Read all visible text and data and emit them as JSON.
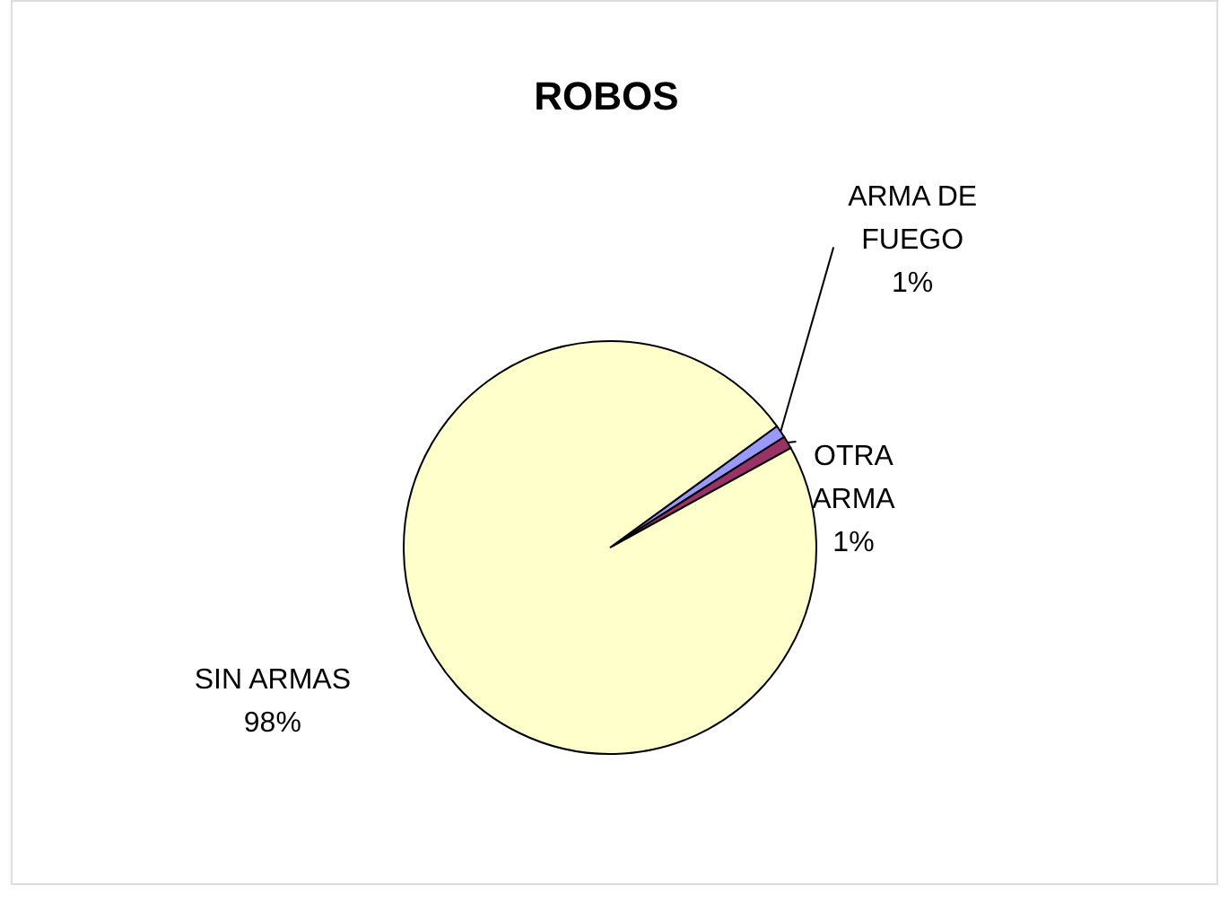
{
  "chart_data": {
    "type": "pie",
    "title": "ROBOS",
    "categories": [
      "ARMA DE FUEGO",
      "OTRA ARMA",
      "SIN ARMAS"
    ],
    "values": [
      1,
      1,
      98
    ],
    "value_labels": [
      "1%",
      "1%",
      "98%"
    ],
    "colors": [
      "#9999ff",
      "#993366",
      "#ffffcc"
    ],
    "legend": false
  }
}
